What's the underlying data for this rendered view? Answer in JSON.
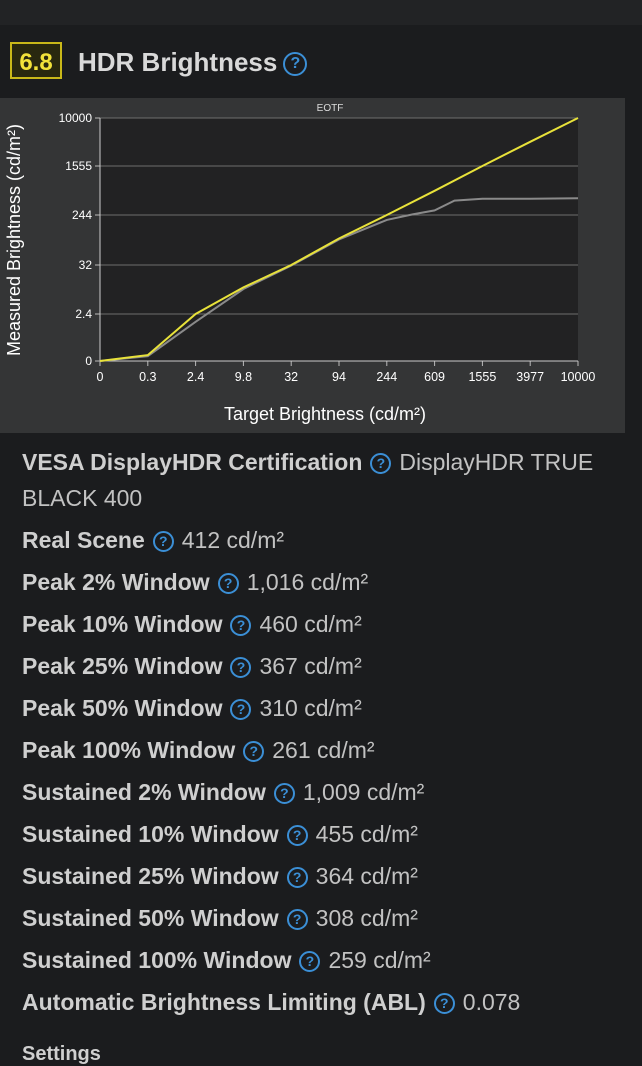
{
  "header": {
    "score": "6.8",
    "title": "HDR Brightness"
  },
  "chart_data": {
    "type": "line",
    "title": "EOTF",
    "xlabel": "Target Brightness (cd/m²)",
    "ylabel": "Measured Brightness (cd/m²)",
    "x_ticks": [
      "0",
      "0.3",
      "2.4",
      "9.8",
      "32",
      "94",
      "244",
      "609",
      "1555",
      "3977",
      "10000"
    ],
    "y_ticks": [
      "0",
      "2.4",
      "32",
      "244",
      "1555",
      "10000"
    ],
    "xlim": [
      0,
      10000
    ],
    "ylim": [
      0,
      10000
    ],
    "grid": true,
    "colors": {
      "target": "#e8e23a",
      "measured": "#8a8a8a"
    },
    "series": [
      {
        "x": [
          0,
          0.3,
          2.4,
          9.8,
          32,
          94,
          244,
          609,
          1555,
          3977,
          10000
        ],
        "values": [
          0,
          0.3,
          2.4,
          9.8,
          32,
          94,
          244,
          609,
          1555,
          3977,
          10000
        ]
      },
      {
        "x": [
          0,
          0.3,
          2.4,
          9.8,
          32,
          94,
          244,
          400,
          609,
          900,
          1555,
          3977,
          10000
        ],
        "values": [
          0,
          0.25,
          2.0,
          9.0,
          31,
          90,
          200,
          250,
          290,
          420,
          450,
          450,
          460
        ]
      }
    ]
  },
  "specs": [
    {
      "label": "VESA DisplayHDR Certification",
      "value": "DisplayHDR TRUE BLACK 400"
    },
    {
      "label": "Real Scene",
      "value": "412 cd/m²"
    },
    {
      "label": "Peak 2% Window",
      "value": "1,016 cd/m²"
    },
    {
      "label": "Peak 10% Window",
      "value": "460 cd/m²"
    },
    {
      "label": "Peak 25% Window",
      "value": "367 cd/m²"
    },
    {
      "label": "Peak 50% Window",
      "value": "310 cd/m²"
    },
    {
      "label": "Peak 100% Window",
      "value": "261 cd/m²"
    },
    {
      "label": "Sustained 2% Window",
      "value": "1,009 cd/m²"
    },
    {
      "label": "Sustained 10% Window",
      "value": "455 cd/m²"
    },
    {
      "label": "Sustained 25% Window",
      "value": "364 cd/m²"
    },
    {
      "label": "Sustained 50% Window",
      "value": "308 cd/m²"
    },
    {
      "label": "Sustained 100% Window",
      "value": "259 cd/m²"
    },
    {
      "label": "Automatic Brightness Limiting (ABL)",
      "value": "0.078"
    }
  ],
  "settings_heading": "Settings",
  "help_icon_glyph": "?"
}
